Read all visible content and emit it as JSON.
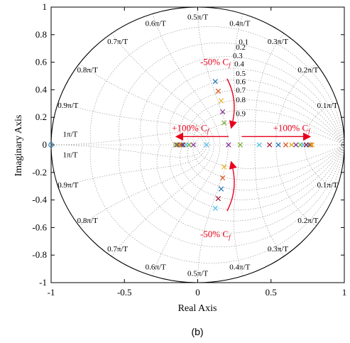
{
  "chart_data": {
    "type": "scatter",
    "title": "",
    "xlabel": "Real Axis",
    "ylabel": "Imaginary Axis",
    "caption": "(b)",
    "xlim": [
      -1,
      1
    ],
    "ylim": [
      -1,
      1
    ],
    "xticks": [
      "-1",
      "-0.5",
      "0",
      "0.5",
      "1"
    ],
    "yticks": [
      "1",
      "0.8",
      "0.6",
      "0.4",
      "0.2",
      "0",
      "-0.2",
      "-0.4",
      "-0.6",
      "-0.8",
      "-1"
    ],
    "grid": "zgrid (dotted damping and natural-frequency contours)",
    "unit_circle": true,
    "damping_labels": [
      "0.1",
      "0.2",
      "0.3",
      "0.4",
      "0.5",
      "0.6",
      "0.7",
      "0.8",
      "0.9"
    ],
    "wn_labels_upper": [
      "0.1π/T",
      "0.2π/T",
      "0.3π/T",
      "0.4π/T",
      "0.5π/T",
      "0.6π/T",
      "0.7π/T",
      "0.8π/T",
      "0.9π/T",
      "1π/T"
    ],
    "wn_labels_lower": [
      "0.1π/T",
      "0.2π/T",
      "0.3π/T",
      "0.4π/T",
      "0.5π/T",
      "0.6π/T",
      "0.7π/T",
      "0.8π/T",
      "0.9π/T",
      "1π/T"
    ],
    "annotations": [
      {
        "text": "-50% C",
        "sub": "f",
        "where": "upper-center"
      },
      {
        "text": "+100% C",
        "sub": "f",
        "where": "left-center"
      },
      {
        "text": "+100% C",
        "sub": "f",
        "where": "right-center"
      },
      {
        "text": "-50% C",
        "sub": "f",
        "where": "lower-center"
      }
    ],
    "colors": [
      "#1f77b4",
      "#d95319",
      "#edb120",
      "#7e2f8e",
      "#77ac30",
      "#4dbeee",
      "#a2142f"
    ],
    "poles": [
      {
        "x": 0.12,
        "y": 0.46
      },
      {
        "x": 0.14,
        "y": 0.39
      },
      {
        "x": 0.16,
        "y": 0.32
      },
      {
        "x": 0.17,
        "y": 0.24
      },
      {
        "x": 0.18,
        "y": 0.16
      },
      {
        "x": 0.12,
        "y": -0.46
      },
      {
        "x": 0.14,
        "y": -0.39
      },
      {
        "x": 0.16,
        "y": -0.32
      },
      {
        "x": 0.17,
        "y": -0.24
      },
      {
        "x": 0.18,
        "y": -0.16
      },
      {
        "x": 0.21,
        "y": 0.0
      },
      {
        "x": 0.29,
        "y": 0.0
      },
      {
        "x": 0.42,
        "y": 0.0
      },
      {
        "x": 0.49,
        "y": 0.0
      },
      {
        "x": 0.55,
        "y": 0.0
      },
      {
        "x": 0.6,
        "y": 0.0
      },
      {
        "x": 0.64,
        "y": 0.0
      },
      {
        "x": 0.67,
        "y": 0.0
      },
      {
        "x": 0.7,
        "y": 0.0
      },
      {
        "x": 0.72,
        "y": 0.0
      },
      {
        "x": 0.74,
        "y": 0.0
      },
      {
        "x": 0.76,
        "y": 0.0
      },
      {
        "x": 0.77,
        "y": 0.0
      },
      {
        "x": 0.78,
        "y": 0.0
      },
      {
        "x": -0.03,
        "y": 0.0
      },
      {
        "x": -0.06,
        "y": 0.0
      },
      {
        "x": -0.08,
        "y": 0.0
      },
      {
        "x": -0.1,
        "y": 0.0
      },
      {
        "x": -0.11,
        "y": 0.0
      },
      {
        "x": -0.12,
        "y": 0.0
      },
      {
        "x": -0.13,
        "y": 0.0
      },
      {
        "x": -0.14,
        "y": 0.0
      },
      {
        "x": -0.15,
        "y": 0.0
      },
      {
        "x": 0.06,
        "y": 0.0
      }
    ],
    "zeros": [
      {
        "x": -1.0,
        "y": 0.0
      }
    ]
  }
}
